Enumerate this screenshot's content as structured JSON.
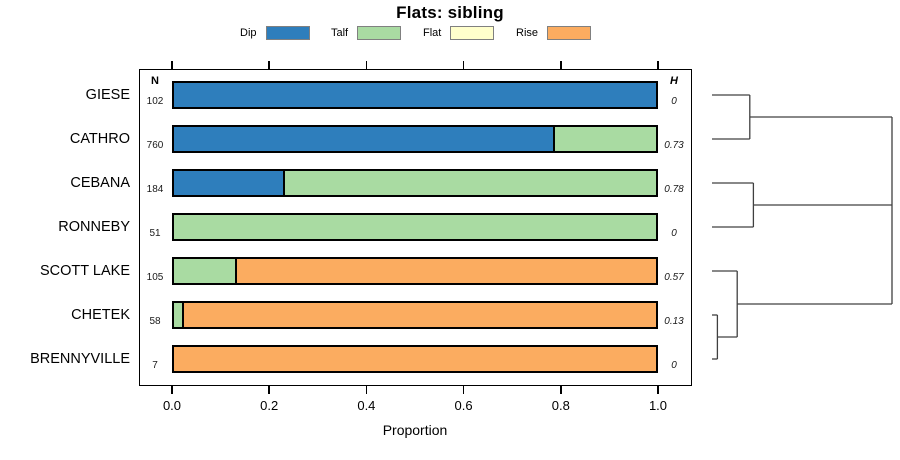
{
  "title": "Flats: sibling",
  "legend": {
    "items": [
      {
        "label": "Dip",
        "color": "#2E7EBC"
      },
      {
        "label": "Talf",
        "color": "#A9DBA2"
      },
      {
        "label": "Flat",
        "color": "#FFFFCC"
      },
      {
        "label": "Rise",
        "color": "#FBAC60"
      }
    ]
  },
  "chart_data": {
    "type": "bar",
    "orientation": "horizontal-stacked",
    "title": "Flats: sibling",
    "xlabel": "Proportion",
    "xlim": [
      0,
      1
    ],
    "grid": false,
    "x_ticks": [
      0,
      0.2,
      0.4,
      0.6,
      0.8,
      1.0
    ],
    "x_tick_labels": [
      "0.0",
      "0.2",
      "0.4",
      "0.6",
      "0.8",
      "1.0"
    ],
    "n_header": "N",
    "h_header": "H",
    "categories": [
      "GIESE",
      "CATHRO",
      "CEBANA",
      "RONNEBY",
      "SCOTT LAKE",
      "CHETEK",
      "BRENNYVILLE"
    ],
    "n_values": [
      102,
      760,
      184,
      51,
      105,
      58,
      7
    ],
    "h_values": [
      "0",
      "0.73",
      "0.78",
      "0",
      "0.57",
      "0.13",
      "0"
    ],
    "series": [
      {
        "name": "Dip",
        "color": "#2E7EBC",
        "values": [
          1.0,
          0.79,
          0.23,
          0,
          0,
          0,
          0
        ]
      },
      {
        "name": "Talf",
        "color": "#A9DBA2",
        "values": [
          0,
          0.21,
          0.77,
          1.0,
          0.13,
          0.02,
          0
        ]
      },
      {
        "name": "Flat",
        "color": "#FFFFCC",
        "values": [
          0,
          0,
          0,
          0,
          0,
          0,
          0
        ]
      },
      {
        "name": "Rise",
        "color": "#FBAC60",
        "values": [
          0,
          0,
          0,
          0,
          0.87,
          0.98,
          1.0
        ]
      }
    ],
    "dendrogram": {
      "leaves": [
        "GIESE",
        "CATHRO",
        "CEBANA",
        "RONNEBY",
        "SCOTT LAKE",
        "CHETEK",
        "BRENNYVILLE"
      ],
      "merges": [
        {
          "id": "m1",
          "children": [
            "GIESE",
            "CATHRO"
          ],
          "height": 0.21
        },
        {
          "id": "m2",
          "children": [
            "CEBANA",
            "RONNEBY"
          ],
          "height": 0.23
        },
        {
          "id": "m3",
          "children": [
            "CHETEK",
            "BRENNYVILLE"
          ],
          "height": 0.03
        },
        {
          "id": "m4",
          "children": [
            "SCOTT LAKE",
            "m3"
          ],
          "height": 0.14
        },
        {
          "id": "root",
          "children": [
            "m1",
            "m2",
            "m4"
          ],
          "height": 1.0
        }
      ]
    }
  },
  "colors": {
    "bar_border": "#000000",
    "axis": "#000000",
    "dendrogram_line": "#404040",
    "legend_swatch_border": "#808080",
    "background": "#FFFFFF"
  }
}
